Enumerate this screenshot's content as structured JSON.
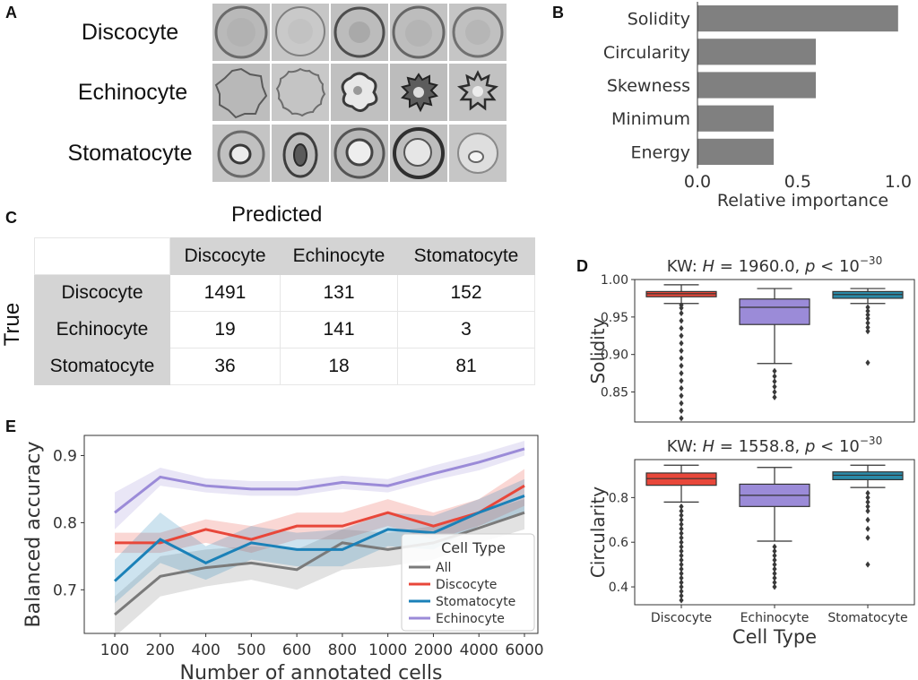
{
  "panel_letters": {
    "a": "A",
    "b": "B",
    "c": "C",
    "d": "D",
    "e": "E"
  },
  "panel_a": {
    "row_labels": [
      "Discocyte",
      "Echinocyte",
      "Stomatocyte"
    ]
  },
  "chart_data": [
    {
      "panel": "B",
      "type": "bar",
      "orientation": "horizontal",
      "categories": [
        "Solidity",
        "Circularity",
        "Skewness",
        "Minimum",
        "Energy"
      ],
      "values": [
        1.0,
        0.59,
        0.59,
        0.38,
        0.38
      ],
      "xlabel": "Relative importance",
      "xlim": [
        0,
        1.05
      ],
      "xticks": [
        "0.0",
        "0.5",
        "1.0"
      ],
      "xtick_values": [
        0,
        0.5,
        1.0
      ],
      "color": "#808080"
    },
    {
      "panel": "C",
      "type": "table",
      "title": "Predicted",
      "row_axis_label": "True",
      "columns": [
        "Discocyte",
        "Echinocyte",
        "Stomatocyte"
      ],
      "rows": [
        {
          "label": "Discocyte",
          "values": [
            "1491",
            "131",
            "152"
          ]
        },
        {
          "label": "Echinocyte",
          "values": [
            "19",
            "141",
            "3"
          ]
        },
        {
          "label": "Stomatocyte",
          "values": [
            "36",
            "18",
            "81"
          ]
        }
      ]
    },
    {
      "panel": "D-top",
      "type": "box",
      "title_pre": "KW: ",
      "title_h": "H",
      "title_mid": " = 1960.0, ",
      "title_p": "p",
      "title_lt": " < 10",
      "title_exp": "−30",
      "ylabel": "Solidity",
      "ylim": [
        0.81,
        1.0
      ],
      "yticks": [
        "0.85",
        "0.90",
        "0.95",
        "1.00"
      ],
      "ytick_values": [
        0.85,
        0.9,
        0.95,
        1.0
      ],
      "categories": [
        "Discocyte",
        "Echinocyte",
        "Stomatocyte"
      ],
      "boxes": [
        {
          "name": "Discocyte",
          "color": "#e8473a",
          "whisker_low": 0.968,
          "q1": 0.977,
          "median": 0.981,
          "q3": 0.984,
          "whisker_high": 0.993,
          "outliers": [
            0.815,
            0.825,
            0.835,
            0.845,
            0.855,
            0.865,
            0.875,
            0.885,
            0.895,
            0.905,
            0.915,
            0.925,
            0.935,
            0.945,
            0.955,
            0.962,
            0.966
          ]
        },
        {
          "name": "Echinocyte",
          "color": "#9b8bd8",
          "whisker_low": 0.888,
          "q1": 0.94,
          "median": 0.963,
          "q3": 0.974,
          "whisker_high": 0.988,
          "outliers": [
            0.843,
            0.85,
            0.857,
            0.864,
            0.871,
            0.878
          ]
        },
        {
          "name": "Stomatocyte",
          "color": "#2a8aa8",
          "whisker_low": 0.968,
          "q1": 0.975,
          "median": 0.98,
          "q3": 0.984,
          "whisker_high": 0.988,
          "outliers": [
            0.889,
            0.931,
            0.936,
            0.942,
            0.948,
            0.953,
            0.958,
            0.963
          ]
        }
      ]
    },
    {
      "panel": "D-bottom",
      "type": "box",
      "title_pre": "KW: ",
      "title_h": "H",
      "title_mid": " = 1558.8, ",
      "title_p": "p",
      "title_lt": " < 10",
      "title_exp": "−30",
      "ylabel": "Circularity",
      "xlabel": "Cell Type",
      "ylim": [
        0.32,
        0.97
      ],
      "yticks": [
        "0.4",
        "0.6",
        "0.8"
      ],
      "ytick_values": [
        0.4,
        0.6,
        0.8
      ],
      "categories": [
        "Discocyte",
        "Echinocyte",
        "Stomatocyte"
      ],
      "boxes": [
        {
          "name": "Discocyte",
          "color": "#e8473a",
          "whisker_low": 0.78,
          "q1": 0.855,
          "median": 0.885,
          "q3": 0.91,
          "whisker_high": 0.945,
          "outliers": [
            0.34,
            0.36,
            0.38,
            0.4,
            0.42,
            0.44,
            0.46,
            0.48,
            0.5,
            0.52,
            0.54,
            0.56,
            0.58,
            0.6,
            0.62,
            0.64,
            0.66,
            0.68,
            0.7,
            0.72,
            0.74,
            0.76
          ]
        },
        {
          "name": "Echinocyte",
          "color": "#9b8bd8",
          "whisker_low": 0.605,
          "q1": 0.76,
          "median": 0.81,
          "q3": 0.86,
          "whisker_high": 0.935,
          "outliers": [
            0.4,
            0.42,
            0.44,
            0.46,
            0.48,
            0.5,
            0.52,
            0.54,
            0.56,
            0.58
          ]
        },
        {
          "name": "Stomatocyte",
          "color": "#2a8aa8",
          "whisker_low": 0.845,
          "q1": 0.88,
          "median": 0.9,
          "q3": 0.915,
          "whisker_high": 0.945,
          "outliers": [
            0.5,
            0.62,
            0.66,
            0.7,
            0.74,
            0.76,
            0.78,
            0.8,
            0.82
          ]
        }
      ]
    },
    {
      "panel": "E",
      "type": "line",
      "xlabel": "Number of annotated cells",
      "ylabel": "Balanced accuracy",
      "categories": [
        "100",
        "200",
        "400",
        "500",
        "600",
        "800",
        "1000",
        "2000",
        "4000",
        "6000"
      ],
      "ylim": [
        0.635,
        0.93
      ],
      "yticks": [
        "0.7",
        "0.8",
        "0.9"
      ],
      "ytick_values": [
        0.7,
        0.8,
        0.9
      ],
      "legend_title": "Cell Type",
      "legend_position": "bottom-right",
      "series": [
        {
          "name": "All",
          "color": "#7a7a7a",
          "values": [
            0.663,
            0.72,
            0.733,
            0.74,
            0.73,
            0.77,
            0.76,
            0.77,
            0.792,
            0.815
          ],
          "lower": [
            0.63,
            0.69,
            0.705,
            0.715,
            0.7,
            0.73,
            0.735,
            0.745,
            0.77,
            0.79
          ],
          "upper": [
            0.69,
            0.75,
            0.76,
            0.765,
            0.76,
            0.79,
            0.785,
            0.795,
            0.815,
            0.835
          ]
        },
        {
          "name": "Discocyte",
          "color": "#e8473a",
          "values": [
            0.77,
            0.77,
            0.79,
            0.775,
            0.795,
            0.795,
            0.815,
            0.795,
            0.815,
            0.855
          ],
          "lower": [
            0.755,
            0.755,
            0.77,
            0.755,
            0.775,
            0.775,
            0.795,
            0.775,
            0.795,
            0.825
          ],
          "upper": [
            0.785,
            0.785,
            0.805,
            0.795,
            0.815,
            0.815,
            0.835,
            0.815,
            0.835,
            0.88
          ]
        },
        {
          "name": "Stomatocyte",
          "color": "#1b81b8",
          "values": [
            0.713,
            0.775,
            0.74,
            0.77,
            0.76,
            0.76,
            0.79,
            0.785,
            0.815,
            0.84
          ],
          "lower": [
            0.68,
            0.74,
            0.715,
            0.745,
            0.735,
            0.735,
            0.765,
            0.76,
            0.795,
            0.815
          ],
          "upper": [
            0.745,
            0.815,
            0.765,
            0.795,
            0.785,
            0.79,
            0.815,
            0.81,
            0.835,
            0.865
          ]
        },
        {
          "name": "Echinocyte",
          "color": "#9b8bd8",
          "values": [
            0.815,
            0.868,
            0.855,
            0.85,
            0.85,
            0.86,
            0.855,
            0.873,
            0.89,
            0.91
          ],
          "lower": [
            0.79,
            0.855,
            0.845,
            0.84,
            0.84,
            0.85,
            0.845,
            0.863,
            0.878,
            0.9
          ],
          "upper": [
            0.845,
            0.882,
            0.866,
            0.862,
            0.862,
            0.87,
            0.865,
            0.885,
            0.902,
            0.922
          ]
        }
      ]
    }
  ]
}
